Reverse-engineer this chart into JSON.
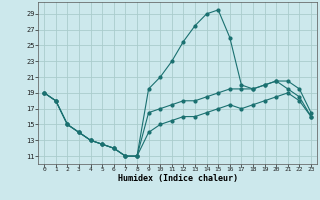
{
  "xlabel": "Humidex (Indice chaleur)",
  "bg_color": "#cce8ec",
  "grid_color": "#aacccc",
  "line_color": "#1a7070",
  "xlim": [
    -0.5,
    23.5
  ],
  "ylim": [
    10,
    30.5
  ],
  "yticks": [
    11,
    13,
    15,
    17,
    19,
    21,
    23,
    25,
    27,
    29
  ],
  "xticks": [
    0,
    1,
    2,
    3,
    4,
    5,
    6,
    7,
    8,
    9,
    10,
    11,
    12,
    13,
    14,
    15,
    16,
    17,
    18,
    19,
    20,
    21,
    22,
    23
  ],
  "line_upper_x": [
    0,
    1,
    2,
    3,
    4,
    5,
    6,
    7,
    8,
    9,
    10,
    11,
    12,
    13,
    14,
    15,
    16,
    17,
    18,
    19,
    20,
    21,
    22,
    23
  ],
  "line_upper_y": [
    19,
    18,
    15,
    14,
    13,
    12.5,
    12,
    11,
    11,
    19.5,
    21,
    23,
    25.5,
    27.5,
    29,
    29.5,
    26,
    20,
    19.5,
    20,
    20.5,
    19.5,
    18.5,
    16
  ],
  "line_mid_x": [
    0,
    1,
    2,
    3,
    4,
    5,
    6,
    7,
    8,
    9,
    10,
    11,
    12,
    13,
    14,
    15,
    16,
    17,
    18,
    19,
    20,
    21,
    22,
    23
  ],
  "line_mid_y": [
    19,
    18,
    15,
    14,
    13,
    12.5,
    12,
    11,
    11,
    16.5,
    17,
    17.5,
    18,
    18,
    18.5,
    19,
    19.5,
    19.5,
    19.5,
    20,
    20.5,
    20.5,
    19.5,
    16.5
  ],
  "line_lower_x": [
    0,
    1,
    2,
    3,
    4,
    5,
    6,
    7,
    8,
    9,
    10,
    11,
    12,
    13,
    14,
    15,
    16,
    17,
    18,
    19,
    20,
    21,
    22,
    23
  ],
  "line_lower_y": [
    19,
    18,
    15,
    14,
    13,
    12.5,
    12,
    11,
    11,
    14,
    15,
    15.5,
    16,
    16,
    16.5,
    17,
    17.5,
    17,
    17.5,
    18,
    18.5,
    19,
    18,
    16
  ]
}
